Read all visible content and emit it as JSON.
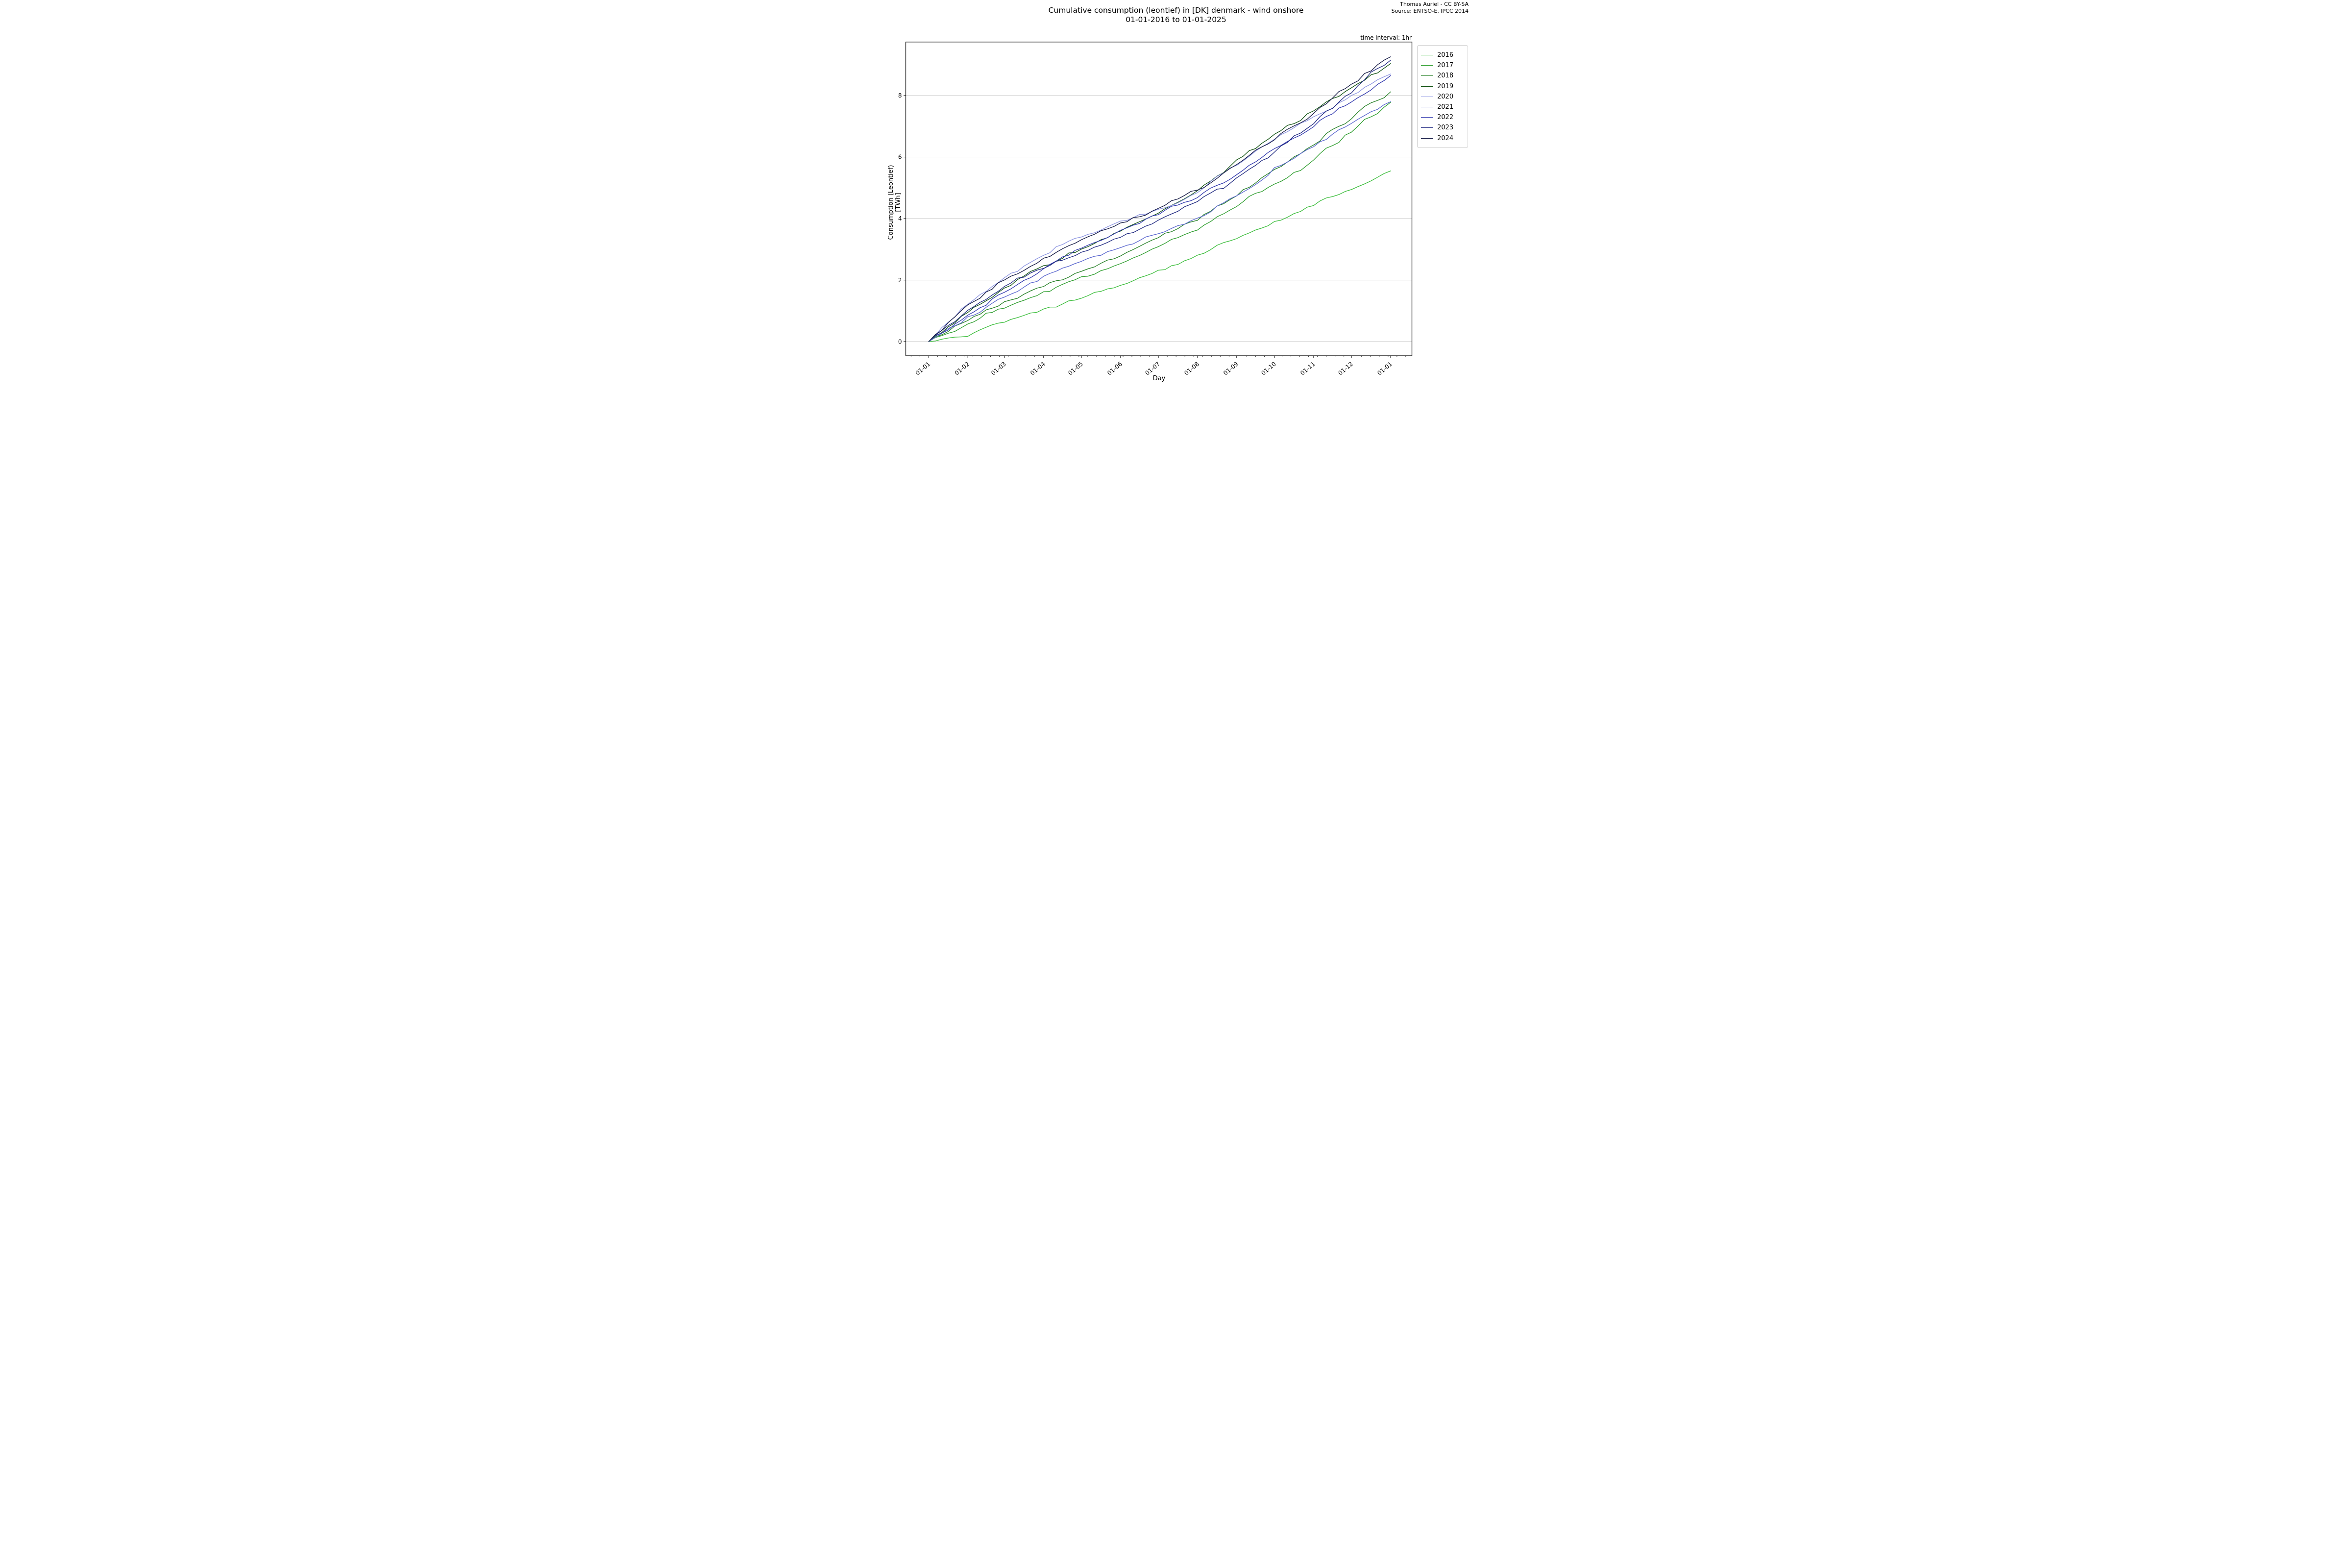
{
  "title": {
    "line1": "Cumulative consumption (leontief) in [DK] denmark - wind onshore",
    "line2": "01-01-2016 to 01-01-2025"
  },
  "attribution": {
    "line1": "Thomas Auriel - CC BY-SA",
    "line2": "Source: ENTSO-E, IPCC 2014"
  },
  "time_interval_note": "time interval: 1hr",
  "chart_data": {
    "type": "line",
    "title": "Cumulative consumption (leontief) in [DK] denmark - wind onshore 01-01-2016 to 01-01-2025",
    "xlabel": "Day",
    "ylabel": "Consumption (Leontief) [TWh]",
    "x_axis": {
      "unit": "day-of-year",
      "tick_days": [
        0,
        31,
        60,
        91,
        121,
        152,
        182,
        213,
        244,
        274,
        305,
        335,
        366
      ],
      "tick_labels": [
        "01-01",
        "01-02",
        "01-03",
        "01-04",
        "01-05",
        "01-06",
        "01-07",
        "01-08",
        "01-09",
        "01-10",
        "01-11",
        "01-12",
        "01-01"
      ],
      "minor_tick_interval_days": 7,
      "lim_days": [
        -18.2,
        382.9
      ]
    },
    "y_axis": {
      "ticks": [
        0,
        2,
        4,
        6,
        8
      ],
      "lim": [
        -0.46,
        9.74
      ],
      "grid": "horizontal",
      "grid_color": "#c8c8c8"
    },
    "legend": {
      "position": "outside-upper-right",
      "entries": [
        "2016",
        "2017",
        "2018",
        "2019",
        "2020",
        "2021",
        "2022",
        "2023",
        "2024"
      ]
    },
    "sample_days": [
      0,
      31,
      60,
      91,
      121,
      152,
      182,
      213,
      244,
      274,
      305,
      335,
      366
    ],
    "series": [
      {
        "name": "2016",
        "color": "#3dbe3d",
        "values": [
          0,
          0.18,
          0.65,
          1.05,
          1.42,
          1.85,
          2.3,
          2.8,
          3.35,
          3.9,
          4.45,
          4.95,
          5.55
        ]
      },
      {
        "name": "2017",
        "color": "#2f9e2f",
        "values": [
          0,
          0.55,
          1.1,
          1.6,
          2.1,
          2.55,
          3.1,
          3.65,
          4.4,
          5.1,
          5.9,
          6.8,
          7.78
        ]
      },
      {
        "name": "2018",
        "color": "#268026",
        "values": [
          0,
          0.7,
          1.3,
          1.8,
          2.3,
          2.8,
          3.4,
          3.95,
          4.75,
          5.6,
          6.4,
          7.25,
          8.12
        ]
      },
      {
        "name": "2019",
        "color": "#145414",
        "values": [
          0,
          0.95,
          1.75,
          2.45,
          3.0,
          3.6,
          4.2,
          4.9,
          5.9,
          6.75,
          7.5,
          8.25,
          9.04
        ]
      },
      {
        "name": "2020",
        "color": "#8e96e2",
        "values": [
          0,
          1.2,
          2.1,
          2.8,
          3.4,
          3.9,
          4.3,
          4.85,
          5.75,
          6.6,
          7.3,
          8.0,
          8.7
        ]
      },
      {
        "name": "2021",
        "color": "#5c68cf",
        "values": [
          0,
          0.8,
          1.45,
          2.1,
          2.6,
          3.05,
          3.5,
          4.0,
          4.75,
          5.65,
          6.35,
          7.1,
          7.8
        ]
      },
      {
        "name": "2022",
        "color": "#3239ae",
        "values": [
          0,
          0.85,
          1.6,
          2.35,
          3.05,
          3.6,
          4.15,
          4.7,
          5.45,
          6.25,
          7.0,
          7.8,
          8.65
        ]
      },
      {
        "name": "2023",
        "color": "#222b82",
        "values": [
          0,
          1.0,
          1.8,
          2.4,
          2.9,
          3.4,
          3.95,
          4.55,
          5.3,
          6.15,
          7.1,
          8.1,
          9.15
        ]
      },
      {
        "name": "2024",
        "color": "#151a45",
        "values": [
          0,
          1.2,
          2.0,
          2.7,
          3.3,
          3.85,
          4.35,
          4.95,
          5.75,
          6.55,
          7.4,
          8.35,
          9.26
        ]
      }
    ]
  }
}
